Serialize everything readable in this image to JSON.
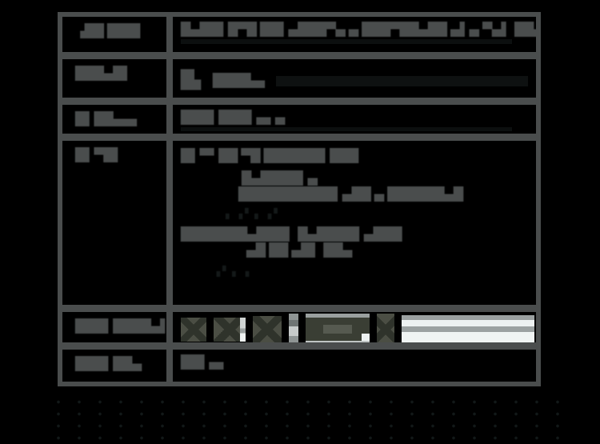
{
  "colors": {
    "page_background": "#000000",
    "table_gray": "#4a4d4d",
    "faint_bar": "#0e1111",
    "thumbnail_olive": "#4b4e44",
    "panel_light_gray": "#9ba1a1",
    "panel_white": "#f0f4f3"
  },
  "table": {
    "rows": [
      {
        "label": "▗██ ███▌",
        "text": "█▄██▌█▀█ ██▌▄███▀▄ ▄ ███▀██▄██ ▄▌▄ ▀▄▌ ██▄█▌▄█"
      },
      {
        "label": "███▄█▌",
        "icon": "█▖",
        "text": "████▄▖"
      },
      {
        "label": "█▌██▄▄▖",
        "text": "███▌███▌▄▖▄"
      },
      {
        "label": "█▌▀█▌",
        "lines": {
          "l1": "█▌▀▘██ ▀█ ██████▌███",
          "l2": "█▄████▌▄",
          "l3": "██████████▌▄██ ▄ ██████▄█",
          "dots1": "▖      ▗     ▘      ▖     ▗      ▘",
          "l4": "███████▄███▌ █▄████▌▄███",
          "l5": "▄█ ██ ▄█▌ ██▄",
          "dots2": "▗     ▘      ▖        ▗"
        }
      },
      {
        "label": "███▌████▄▌",
        "thumbnails": [
          {
            "name": "thumbnail-image-1",
            "variant": "x-dark",
            "w": 32,
            "h": 30
          },
          {
            "name": "thumbnail-image-2",
            "variant": "x-dark lightstrip",
            "w": 40,
            "h": 30
          },
          {
            "name": "thumbnail-image-3",
            "variant": "x-dark",
            "w": 36,
            "h": 34
          },
          {
            "name": "thumbnail-image-4",
            "variant": "vstrip",
            "w": 12,
            "h": 40
          },
          {
            "name": "thumbnail-image-5",
            "variant": "frame",
            "w": 80,
            "h": 40
          },
          {
            "name": "thumbnail-image-6",
            "variant": "x-dark",
            "w": 22,
            "h": 40
          }
        ]
      },
      {
        "label": "███▌██▄",
        "text": "██▌▄▖"
      }
    ]
  }
}
